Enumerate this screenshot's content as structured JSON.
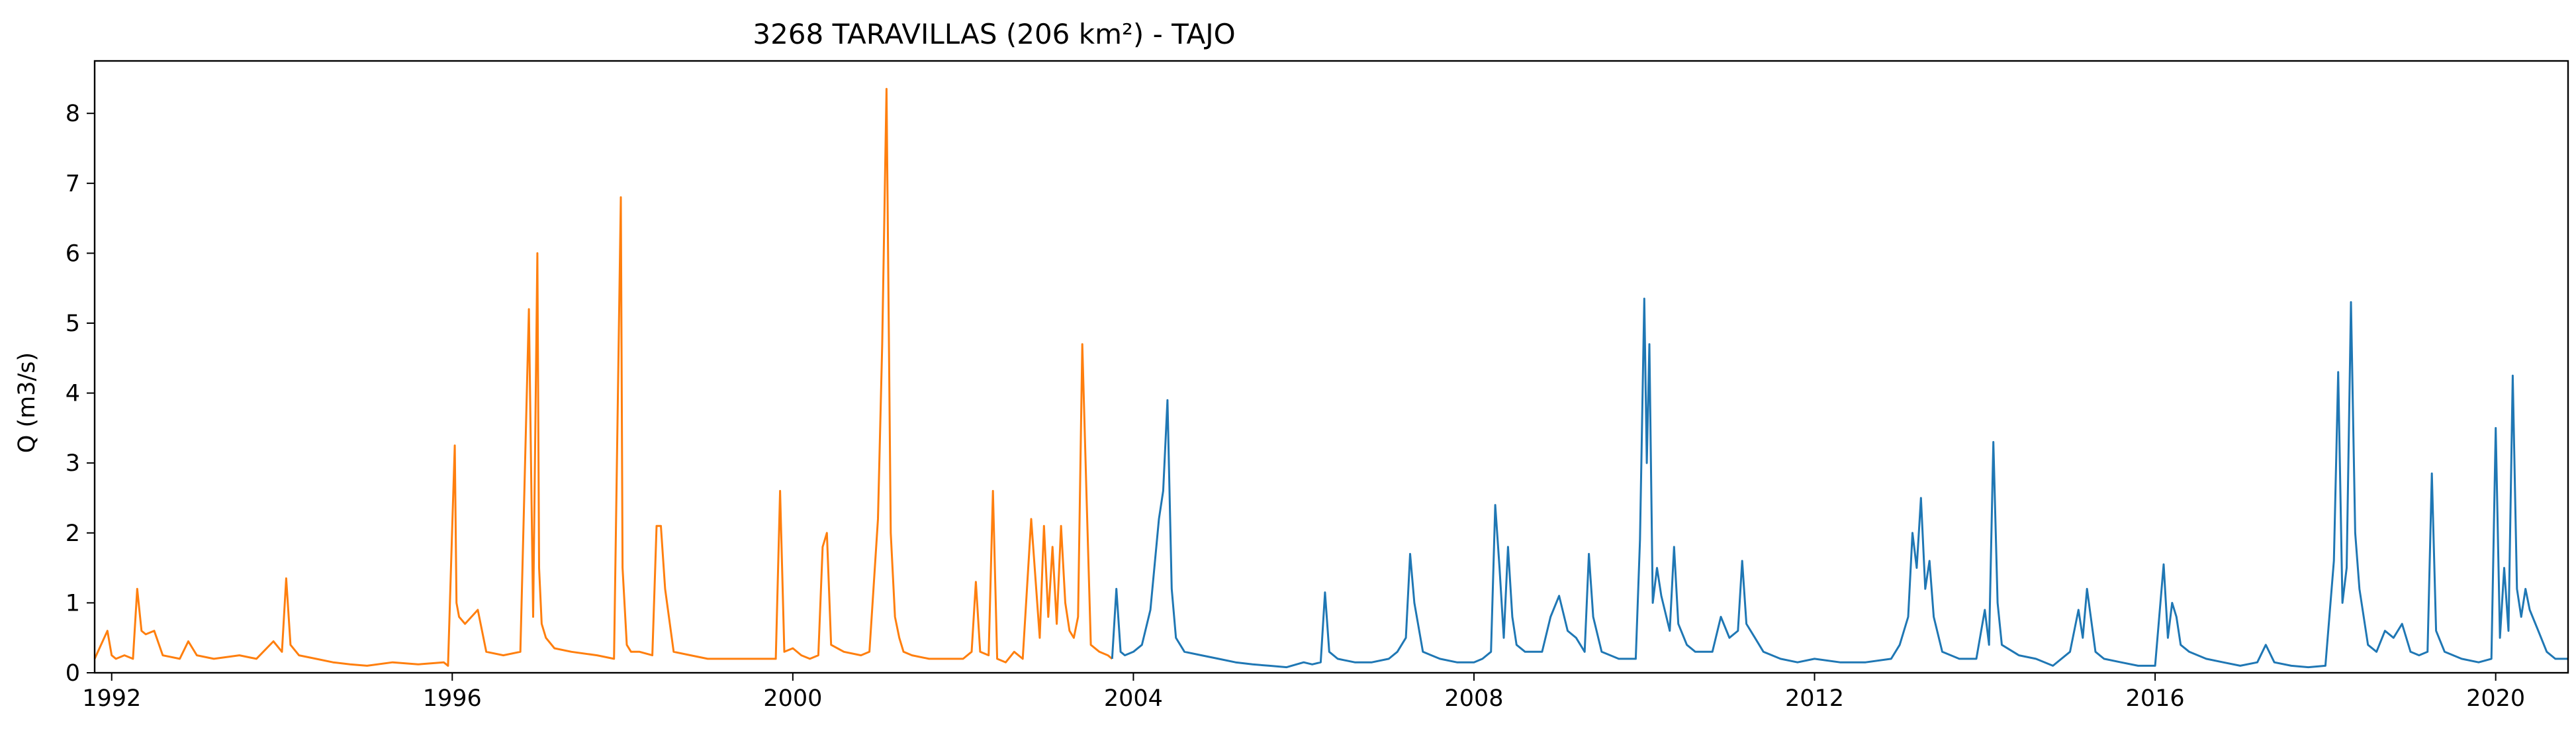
{
  "chart_data": {
    "type": "line",
    "title": "3268 TARAVILLAS (206 km²) - TAJO",
    "xlabel": "",
    "ylabel": "Q (m3/s)",
    "xlim": [
      1991.8,
      2020.85
    ],
    "ylim": [
      0,
      8.75
    ],
    "x_ticks": [
      "1992",
      "1996",
      "2000",
      "2004",
      "2008",
      "2012",
      "2016",
      "2020"
    ],
    "y_ticks": [
      "0",
      "1",
      "2",
      "3",
      "4",
      "5",
      "6",
      "7",
      "8"
    ],
    "grid": false,
    "legend": null,
    "series": [
      {
        "color": "#ff7f0e",
        "x": [
          1991.8,
          1991.95,
          1992.0,
          1992.05,
          1992.15,
          1992.25,
          1992.3,
          1992.35,
          1992.4,
          1992.5,
          1992.6,
          1992.8,
          1992.9,
          1993.0,
          1993.2,
          1993.5,
          1993.7,
          1993.9,
          1994.0,
          1994.05,
          1994.1,
          1994.2,
          1994.4,
          1994.6,
          1994.8,
          1995.0,
          1995.3,
          1995.6,
          1995.9,
          1995.95,
          1996.0,
          1996.03,
          1996.05,
          1996.08,
          1996.15,
          1996.3,
          1996.4,
          1996.6,
          1996.8,
          1996.9,
          1996.95,
          1997.0,
          1997.02,
          1997.05,
          1997.1,
          1997.2,
          1997.4,
          1997.7,
          1997.9,
          1997.98,
          1998.0,
          1998.05,
          1998.1,
          1998.2,
          1998.35,
          1998.4,
          1998.45,
          1998.5,
          1998.6,
          1998.8,
          1999.0,
          1999.3,
          1999.6,
          1999.8,
          1999.85,
          1999.9,
          2000.0,
          2000.1,
          2000.2,
          2000.3,
          2000.35,
          2000.4,
          2000.45,
          2000.6,
          2000.8,
          2000.9,
          2001.0,
          2001.05,
          2001.1,
          2001.15,
          2001.2,
          2001.25,
          2001.3,
          2001.4,
          2001.6,
          2001.8,
          2002.0,
          2002.1,
          2002.15,
          2002.2,
          2002.3,
          2002.35,
          2002.4,
          2002.5,
          2002.6,
          2002.7,
          2002.8,
          2002.9,
          2002.95,
          2003.0,
          2003.05,
          2003.1,
          2003.15,
          2003.2,
          2003.25,
          2003.3,
          2003.35,
          2003.4,
          2003.45,
          2003.5,
          2003.6,
          2003.7,
          2003.75
        ],
        "y": [
          0.2,
          0.6,
          0.25,
          0.2,
          0.25,
          0.2,
          1.2,
          0.6,
          0.55,
          0.6,
          0.25,
          0.2,
          0.45,
          0.25,
          0.2,
          0.25,
          0.2,
          0.45,
          0.3,
          1.35,
          0.4,
          0.25,
          0.2,
          0.15,
          0.12,
          0.1,
          0.15,
          0.12,
          0.15,
          0.1,
          2.1,
          3.25,
          1.0,
          0.8,
          0.7,
          0.9,
          0.3,
          0.25,
          0.3,
          5.2,
          0.8,
          6.0,
          1.5,
          0.7,
          0.5,
          0.35,
          0.3,
          0.25,
          0.2,
          6.8,
          1.5,
          0.4,
          0.3,
          0.3,
          0.25,
          2.1,
          2.1,
          1.2,
          0.3,
          0.25,
          0.2,
          0.2,
          0.2,
          0.2,
          2.6,
          0.3,
          0.35,
          0.25,
          0.2,
          0.25,
          1.8,
          2.0,
          0.4,
          0.3,
          0.25,
          0.3,
          2.2,
          4.7,
          8.35,
          2.0,
          0.8,
          0.5,
          0.3,
          0.25,
          0.2,
          0.2,
          0.2,
          0.3,
          1.3,
          0.3,
          0.25,
          2.6,
          0.2,
          0.15,
          0.3,
          0.2,
          2.2,
          0.5,
          2.1,
          0.8,
          1.8,
          0.7,
          2.1,
          1.0,
          0.6,
          0.5,
          0.8,
          4.7,
          2.5,
          0.4,
          0.3,
          0.25,
          0.2
        ]
      },
      {
        "color": "#1f77b4",
        "x": [
          2003.75,
          2003.8,
          2003.85,
          2003.9,
          2004.0,
          2004.1,
          2004.2,
          2004.3,
          2004.35,
          2004.4,
          2004.45,
          2004.5,
          2004.6,
          2004.8,
          2005.0,
          2005.2,
          2005.4,
          2005.6,
          2005.8,
          2006.0,
          2006.1,
          2006.2,
          2006.25,
          2006.3,
          2006.4,
          2006.6,
          2006.8,
          2007.0,
          2007.1,
          2007.2,
          2007.25,
          2007.3,
          2007.4,
          2007.6,
          2007.8,
          2008.0,
          2008.1,
          2008.2,
          2008.25,
          2008.3,
          2008.35,
          2008.4,
          2008.45,
          2008.5,
          2008.6,
          2008.8,
          2008.9,
          2009.0,
          2009.1,
          2009.2,
          2009.3,
          2009.35,
          2009.4,
          2009.5,
          2009.7,
          2009.9,
          2009.95,
          2010.0,
          2010.03,
          2010.06,
          2010.1,
          2010.15,
          2010.2,
          2010.3,
          2010.35,
          2010.4,
          2010.5,
          2010.6,
          2010.8,
          2010.9,
          2011.0,
          2011.1,
          2011.15,
          2011.2,
          2011.3,
          2011.4,
          2011.6,
          2011.8,
          2012.0,
          2012.3,
          2012.6,
          2012.9,
          2013.0,
          2013.1,
          2013.15,
          2013.2,
          2013.25,
          2013.3,
          2013.35,
          2013.4,
          2013.5,
          2013.7,
          2013.9,
          2014.0,
          2014.05,
          2014.1,
          2014.15,
          2014.2,
          2014.4,
          2014.6,
          2014.8,
          2015.0,
          2015.1,
          2015.15,
          2015.2,
          2015.3,
          2015.4,
          2015.6,
          2015.8,
          2016.0,
          2016.1,
          2016.15,
          2016.2,
          2016.25,
          2016.3,
          2016.4,
          2016.6,
          2016.8,
          2017.0,
          2017.2,
          2017.3,
          2017.4,
          2017.6,
          2017.8,
          2018.0,
          2018.1,
          2018.15,
          2018.2,
          2018.25,
          2018.3,
          2018.35,
          2018.4,
          2018.5,
          2018.6,
          2018.7,
          2018.8,
          2018.9,
          2019.0,
          2019.1,
          2019.2,
          2019.25,
          2019.3,
          2019.4,
          2019.6,
          2019.8,
          2019.95,
          2020.0,
          2020.05,
          2020.1,
          2020.15,
          2020.2,
          2020.25,
          2020.3,
          2020.35,
          2020.4,
          2020.5,
          2020.6,
          2020.7,
          2020.85
        ],
        "y": [
          0.2,
          1.2,
          0.3,
          0.25,
          0.3,
          0.4,
          0.9,
          2.2,
          2.6,
          3.9,
          1.2,
          0.5,
          0.3,
          0.25,
          0.2,
          0.15,
          0.12,
          0.1,
          0.08,
          0.15,
          0.12,
          0.15,
          1.15,
          0.3,
          0.2,
          0.15,
          0.15,
          0.2,
          0.3,
          0.5,
          1.7,
          1.0,
          0.3,
          0.2,
          0.15,
          0.15,
          0.2,
          0.3,
          2.4,
          1.5,
          0.5,
          1.8,
          0.8,
          0.4,
          0.3,
          0.3,
          0.8,
          1.1,
          0.6,
          0.5,
          0.3,
          1.7,
          0.8,
          0.3,
          0.2,
          0.2,
          1.9,
          5.35,
          3.0,
          4.7,
          1.0,
          1.5,
          1.1,
          0.6,
          1.8,
          0.7,
          0.4,
          0.3,
          0.3,
          0.8,
          0.5,
          0.6,
          1.6,
          0.7,
          0.5,
          0.3,
          0.2,
          0.15,
          0.2,
          0.15,
          0.15,
          0.2,
          0.4,
          0.8,
          2.0,
          1.5,
          2.5,
          1.2,
          1.6,
          0.8,
          0.3,
          0.2,
          0.2,
          0.9,
          0.4,
          3.3,
          1.0,
          0.4,
          0.25,
          0.2,
          0.1,
          0.3,
          0.9,
          0.5,
          1.2,
          0.3,
          0.2,
          0.15,
          0.1,
          0.1,
          1.55,
          0.5,
          1.0,
          0.8,
          0.4,
          0.3,
          0.2,
          0.15,
          0.1,
          0.15,
          0.4,
          0.15,
          0.1,
          0.08,
          0.1,
          1.6,
          4.3,
          1.0,
          1.5,
          5.3,
          2.0,
          1.2,
          0.4,
          0.3,
          0.6,
          0.5,
          0.7,
          0.3,
          0.25,
          0.3,
          2.85,
          0.6,
          0.3,
          0.2,
          0.15,
          0.2,
          3.5,
          0.5,
          1.5,
          0.6,
          4.25,
          1.2,
          0.8,
          1.2,
          0.9,
          0.6,
          0.3,
          0.2,
          0.2
        ]
      }
    ]
  }
}
